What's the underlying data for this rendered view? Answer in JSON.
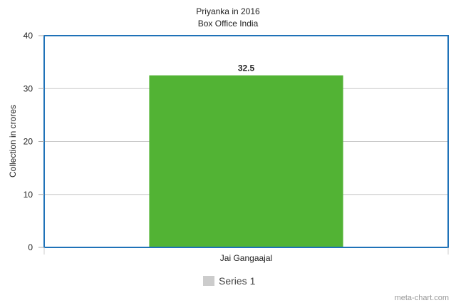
{
  "chart_data": {
    "type": "bar",
    "title": "Priyanka in 2016",
    "subtitle": "Box Office India",
    "xlabel": "",
    "ylabel": "Collection in crores",
    "categories": [
      "Jai Gangaajal"
    ],
    "series": [
      {
        "name": "Series 1",
        "values": [
          32.5
        ]
      }
    ],
    "data_labels": [
      "32.5"
    ],
    "ylim": [
      0,
      40
    ],
    "yticks": [
      "0",
      "10",
      "20",
      "30",
      "40"
    ],
    "grid": true,
    "legend_placement": "bottom",
    "colors": {
      "bar": "#52b334",
      "frame": "#1f72b8",
      "grid": "#c8c8c8",
      "legend_swatch": "#cccccc"
    }
  },
  "credit": "meta-chart.com"
}
